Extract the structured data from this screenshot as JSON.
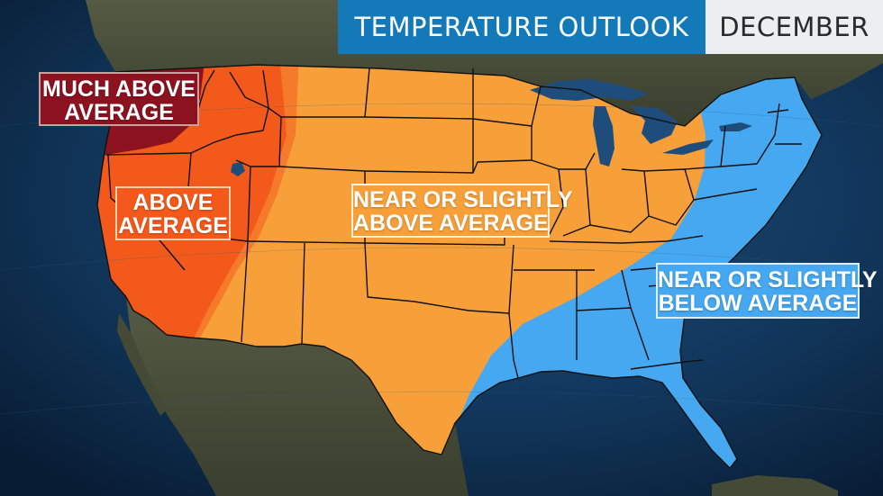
{
  "header": {
    "title": "TEMPERATURE OUTLOOK",
    "month": "DECEMBER"
  },
  "legend_regions": [
    {
      "id": "much_above",
      "lines": [
        "MUCH ABOVE",
        "AVERAGE"
      ],
      "color": "#8c1220"
    },
    {
      "id": "above",
      "lines": [
        "ABOVE",
        "AVERAGE"
      ],
      "color": "#f2591a"
    },
    {
      "id": "near_above",
      "lines": [
        "NEAR OR SLIGHTLY",
        "ABOVE AVERAGE"
      ],
      "color": "#f7a039"
    },
    {
      "id": "near_below",
      "lines": [
        "NEAR OR SLIGHTLY",
        "BELOW AVERAGE"
      ],
      "color": "#45a8f0"
    }
  ],
  "colors": {
    "ocean": "#0c2a4a",
    "land": "#4a4f3c",
    "lakes": "#1e4d7c",
    "state_borders": "#111111",
    "banner_title_bg": "#1479b8",
    "banner_month_bg": "#eceef0"
  }
}
